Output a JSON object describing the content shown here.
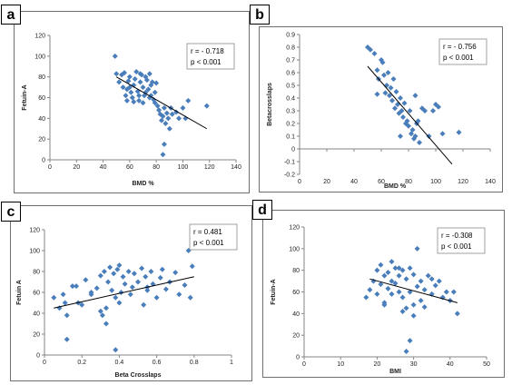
{
  "panels": [
    {
      "letter": "a",
      "r_text": "r = - 0.718",
      "p_text": "p < 0.001"
    },
    {
      "letter": "b",
      "r_text": "r = - 0.756",
      "p_text": "p < 0.001"
    },
    {
      "letter": "c",
      "r_text": "r = 0.481",
      "p_text": "p < 0.001"
    },
    {
      "letter": "d",
      "r_text": "r = -0.308",
      "p_text": "p < 0.001"
    }
  ],
  "chart_data": [
    {
      "type": "scatter",
      "xlabel": "BMD  %",
      "ylabel": "Fetuin-A",
      "xlim": [
        0,
        140
      ],
      "ylim": [
        0,
        120
      ],
      "xticks": [
        0,
        20,
        40,
        60,
        80,
        100,
        120,
        140
      ],
      "yticks": [
        0,
        20,
        40,
        60,
        80,
        100,
        120
      ],
      "marker_color": "#4a7ebb",
      "trendline": [
        [
          50,
          80
        ],
        [
          118,
          30
        ]
      ],
      "points": [
        [
          49,
          100
        ],
        [
          50,
          83
        ],
        [
          52,
          75
        ],
        [
          54,
          82
        ],
        [
          55,
          70
        ],
        [
          56,
          84
        ],
        [
          57,
          62
        ],
        [
          58,
          68
        ],
        [
          59,
          76
        ],
        [
          60,
          80
        ],
        [
          61,
          65
        ],
        [
          62,
          60
        ],
        [
          63,
          72
        ],
        [
          64,
          78
        ],
        [
          65,
          85
        ],
        [
          66,
          66
        ],
        [
          67,
          57
        ],
        [
          68,
          75
        ],
        [
          69,
          82
        ],
        [
          70,
          70
        ],
        [
          70,
          55
        ],
        [
          71,
          62
        ],
        [
          72,
          80
        ],
        [
          73,
          77
        ],
        [
          74,
          68
        ],
        [
          75,
          83
        ],
        [
          75,
          60
        ],
        [
          76,
          72
        ],
        [
          77,
          75
        ],
        [
          78,
          58
        ],
        [
          79,
          65
        ],
        [
          80,
          74
        ],
        [
          81,
          52
        ],
        [
          82,
          48
        ],
        [
          83,
          44
        ],
        [
          84,
          38
        ],
        [
          85,
          42
        ],
        [
          86,
          50
        ],
        [
          87,
          35
        ],
        [
          88,
          45
        ],
        [
          89,
          40
        ],
        [
          90,
          30
        ],
        [
          91,
          50
        ],
        [
          92,
          44
        ],
        [
          95,
          46
        ],
        [
          97,
          40
        ],
        [
          100,
          50
        ],
        [
          102,
          40
        ],
        [
          104,
          57
        ],
        [
          85,
          5
        ],
        [
          86,
          15
        ],
        [
          118,
          52
        ],
        [
          58,
          57
        ],
        [
          63,
          56
        ],
        [
          60,
          70
        ],
        [
          67,
          62
        ],
        [
          72,
          65
        ],
        [
          68,
          83
        ],
        [
          76,
          62
        ],
        [
          79,
          55
        ]
      ]
    },
    {
      "type": "scatter",
      "xlabel": "BMD %",
      "ylabel": "Betacrosslaps",
      "xlim": [
        0,
        140
      ],
      "ylim": [
        -0.2,
        0.9
      ],
      "xticks": [
        0,
        20,
        40,
        60,
        80,
        100,
        120,
        140
      ],
      "yticks": [
        -0.2,
        -0.1,
        0,
        0.1,
        0.2,
        0.3,
        0.4,
        0.5,
        0.6,
        0.7,
        0.8,
        0.9
      ],
      "marker_color": "#4a7ebb",
      "trendline": [
        [
          50,
          0.65
        ],
        [
          112,
          -0.12
        ]
      ],
      "points": [
        [
          50,
          0.8
        ],
        [
          52,
          0.78
        ],
        [
          55,
          0.75
        ],
        [
          57,
          0.62
        ],
        [
          58,
          0.55
        ],
        [
          60,
          0.7
        ],
        [
          61,
          0.68
        ],
        [
          62,
          0.58
        ],
        [
          63,
          0.44
        ],
        [
          64,
          0.5
        ],
        [
          65,
          0.6
        ],
        [
          66,
          0.42
        ],
        [
          67,
          0.48
        ],
        [
          68,
          0.38
        ],
        [
          69,
          0.55
        ],
        [
          70,
          0.32
        ],
        [
          71,
          0.45
        ],
        [
          72,
          0.35
        ],
        [
          73,
          0.28
        ],
        [
          74,
          0.4
        ],
        [
          75,
          0.3
        ],
        [
          76,
          0.25
        ],
        [
          77,
          0.36
        ],
        [
          78,
          0.2
        ],
        [
          79,
          0.22
        ],
        [
          80,
          0.18
        ],
        [
          81,
          0.3
        ],
        [
          82,
          0.12
        ],
        [
          83,
          0.15
        ],
        [
          84,
          0.08
        ],
        [
          85,
          0.1
        ],
        [
          86,
          0.2
        ],
        [
          87,
          0.22
        ],
        [
          88,
          0.05
        ],
        [
          90,
          0.32
        ],
        [
          92,
          0.3
        ],
        [
          95,
          0.1
        ],
        [
          98,
          0.3
        ],
        [
          100,
          0.35
        ],
        [
          102,
          0.33
        ],
        [
          105,
          0.12
        ],
        [
          117,
          0.13
        ],
        [
          74,
          0.1
        ],
        [
          85,
          0.42
        ],
        [
          57,
          0.43
        ]
      ]
    },
    {
      "type": "scatter",
      "xlabel": "Beta Crosslaps",
      "ylabel": "Fetuin A",
      "xlim": [
        0,
        1
      ],
      "ylim": [
        0,
        120
      ],
      "xticks": [
        0,
        0.2,
        0.4,
        0.6,
        0.8,
        1
      ],
      "yticks": [
        0,
        20,
        40,
        60,
        80,
        100,
        120
      ],
      "marker_color": "#4a7ebb",
      "trendline": [
        [
          0.05,
          45
        ],
        [
          0.8,
          75
        ]
      ],
      "points": [
        [
          0.05,
          55
        ],
        [
          0.08,
          45
        ],
        [
          0.1,
          58
        ],
        [
          0.11,
          50
        ],
        [
          0.12,
          38
        ],
        [
          0.12,
          15
        ],
        [
          0.15,
          66
        ],
        [
          0.18,
          50
        ],
        [
          0.2,
          48
        ],
        [
          0.22,
          72
        ],
        [
          0.25,
          60
        ],
        [
          0.28,
          64
        ],
        [
          0.3,
          76
        ],
        [
          0.3,
          42
        ],
        [
          0.31,
          38
        ],
        [
          0.32,
          80
        ],
        [
          0.33,
          45
        ],
        [
          0.34,
          70
        ],
        [
          0.35,
          84
        ],
        [
          0.36,
          62
        ],
        [
          0.37,
          78
        ],
        [
          0.38,
          55
        ],
        [
          0.39,
          82
        ],
        [
          0.4,
          86
        ],
        [
          0.4,
          50
        ],
        [
          0.41,
          60
        ],
        [
          0.42,
          75
        ],
        [
          0.43,
          68
        ],
        [
          0.45,
          80
        ],
        [
          0.46,
          58
        ],
        [
          0.47,
          65
        ],
        [
          0.48,
          78
        ],
        [
          0.5,
          70
        ],
        [
          0.52,
          83
        ],
        [
          0.53,
          48
        ],
        [
          0.54,
          75
        ],
        [
          0.55,
          62
        ],
        [
          0.57,
          80
        ],
        [
          0.58,
          68
        ],
        [
          0.6,
          55
        ],
        [
          0.62,
          74
        ],
        [
          0.63,
          82
        ],
        [
          0.65,
          63
        ],
        [
          0.67,
          70
        ],
        [
          0.7,
          79
        ],
        [
          0.72,
          58
        ],
        [
          0.75,
          67
        ],
        [
          0.77,
          100
        ],
        [
          0.78,
          55
        ],
        [
          0.79,
          85
        ],
        [
          0.38,
          5
        ],
        [
          0.33,
          30
        ],
        [
          0.25,
          58
        ],
        [
          0.17,
          66
        ],
        [
          0.55,
          65
        ]
      ]
    },
    {
      "type": "scatter",
      "xlabel": "BMI",
      "ylabel": "Fetuin-A",
      "xlim": [
        0,
        50
      ],
      "ylim": [
        0,
        120
      ],
      "xticks": [
        0,
        10,
        20,
        30,
        40,
        50
      ],
      "yticks": [
        0,
        20,
        40,
        60,
        80,
        100,
        120
      ],
      "marker_color": "#4a7ebb",
      "trendline": [
        [
          18,
          72
        ],
        [
          42,
          50
        ]
      ],
      "points": [
        [
          17,
          55
        ],
        [
          18,
          62
        ],
        [
          19,
          70
        ],
        [
          20,
          80
        ],
        [
          20,
          58
        ],
        [
          21,
          67
        ],
        [
          21,
          85
        ],
        [
          22,
          75
        ],
        [
          22,
          50
        ],
        [
          23,
          63
        ],
        [
          23,
          78
        ],
        [
          24,
          70
        ],
        [
          24,
          58
        ],
        [
          25,
          82
        ],
        [
          25,
          68
        ],
        [
          26,
          75
        ],
        [
          26,
          60
        ],
        [
          27,
          80
        ],
        [
          27,
          55
        ],
        [
          28,
          72
        ],
        [
          28,
          45
        ],
        [
          29,
          82
        ],
        [
          29,
          60
        ],
        [
          30,
          76
        ],
        [
          30,
          48
        ],
        [
          31,
          100
        ],
        [
          31,
          65
        ],
        [
          32,
          70
        ],
        [
          32,
          52
        ],
        [
          33,
          62
        ],
        [
          34,
          75
        ],
        [
          35,
          58
        ],
        [
          36,
          66
        ],
        [
          37,
          70
        ],
        [
          38,
          55
        ],
        [
          39,
          60
        ],
        [
          40,
          52
        ],
        [
          41,
          60
        ],
        [
          42,
          40
        ],
        [
          28,
          5
        ],
        [
          29,
          15
        ],
        [
          30,
          38
        ],
        [
          27,
          42
        ],
        [
          33,
          46
        ],
        [
          22,
          48
        ],
        [
          24,
          88
        ],
        [
          26,
          82
        ],
        [
          35,
          72
        ]
      ]
    }
  ]
}
